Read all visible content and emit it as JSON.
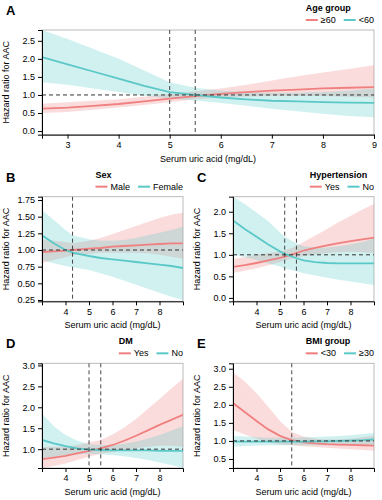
{
  "chart_data": [
    {
      "type": "line",
      "title": "A",
      "legend_title": "Age group",
      "legend": "upper right",
      "xlabel": "Serum uric acid (mg/dL)",
      "ylabel": "Hazard ratio for AAC",
      "xlim": [
        2.5,
        9.0
      ],
      "ylim": [
        -0.1,
        2.8
      ],
      "xticks": [
        3,
        4,
        5,
        6,
        7,
        8,
        9
      ],
      "yticks": [
        {
          "value": 0.0,
          "label": "0.0"
        },
        0.5,
        {
          "value": 1.0,
          "label": "1.0"
        },
        1.5,
        {
          "value": 2.0,
          "label": "2.0"
        },
        2.5
      ],
      "hline": 1.0,
      "vlines": [
        5.0,
        5.5
      ],
      "x": [
        2.5,
        3.0,
        3.5,
        4.0,
        4.5,
        5.0,
        5.5,
        6.0,
        6.5,
        7.0,
        7.5,
        8.0,
        8.5,
        9.0
      ],
      "series": [
        {
          "name": "≥60",
          "color": "#F08080",
          "values": [
            0.62,
            0.65,
            0.7,
            0.75,
            0.82,
            0.9,
            0.97,
            1.03,
            1.08,
            1.12,
            1.15,
            1.18,
            1.2,
            1.22
          ],
          "lower": [
            0.5,
            0.53,
            0.59,
            0.65,
            0.72,
            0.8,
            0.88,
            0.93,
            0.96,
            0.97,
            0.97,
            0.97,
            0.95,
            0.93
          ],
          "upper": [
            0.76,
            0.8,
            0.84,
            0.88,
            0.95,
            1.03,
            1.1,
            1.18,
            1.28,
            1.4,
            1.52,
            1.62,
            1.72,
            1.82
          ]
        },
        {
          "name": "<60",
          "color": "#5BC8C8",
          "values": [
            2.05,
            1.85,
            1.65,
            1.45,
            1.25,
            1.08,
            1.0,
            0.93,
            0.88,
            0.84,
            0.82,
            0.8,
            0.79,
            0.78
          ],
          "lower": [
            1.35,
            1.28,
            1.18,
            1.08,
            0.98,
            0.9,
            0.85,
            0.78,
            0.7,
            0.62,
            0.55,
            0.48,
            0.42,
            0.38
          ],
          "upper": [
            2.8,
            2.55,
            2.28,
            2.0,
            1.68,
            1.35,
            1.2,
            1.12,
            1.08,
            1.06,
            1.06,
            1.08,
            1.12,
            1.18
          ]
        }
      ]
    },
    {
      "type": "line",
      "title": "B",
      "legend_title": "Sex",
      "legend": "upper right",
      "xlabel": "Serum uric acid (mg/dL)",
      "ylabel": "Hazard ratio for AAC",
      "xlim": [
        3.0,
        9.0
      ],
      "ylim": [
        0.23,
        1.8
      ],
      "xticks": [
        4,
        5,
        6,
        7,
        8
      ],
      "yticks": [
        0.25,
        {
          "value": 0.5,
          "label": "0.50"
        },
        0.75,
        {
          "value": 1.0,
          "label": "1.00"
        },
        1.25,
        {
          "value": 1.5,
          "label": "1.50"
        },
        1.75
      ],
      "hline": 1.0,
      "vlines": [
        4.3
      ],
      "x": [
        3.0,
        3.5,
        4.0,
        4.3,
        5.0,
        5.5,
        6.0,
        6.5,
        7.0,
        7.5,
        8.0,
        8.5,
        9.0
      ],
      "series": [
        {
          "name": "Male",
          "color": "#F08080",
          "values": [
            0.97,
            0.98,
            0.99,
            1.0,
            1.02,
            1.03,
            1.05,
            1.06,
            1.07,
            1.08,
            1.09,
            1.1,
            1.1
          ],
          "lower": [
            0.8,
            0.85,
            0.89,
            0.92,
            0.94,
            0.96,
            0.96,
            0.96,
            0.96,
            0.95,
            0.93,
            0.9,
            0.87
          ],
          "upper": [
            1.16,
            1.14,
            1.12,
            1.1,
            1.14,
            1.18,
            1.24,
            1.3,
            1.36,
            1.42,
            1.48,
            1.53,
            1.56
          ]
        },
        {
          "name": "Female",
          "color": "#5BC8C8",
          "values": [
            1.22,
            1.1,
            1.0,
            0.96,
            0.91,
            0.88,
            0.86,
            0.84,
            0.82,
            0.8,
            0.78,
            0.76,
            0.73
          ],
          "lower": [
            0.85,
            0.8,
            0.76,
            0.74,
            0.7,
            0.65,
            0.6,
            0.54,
            0.48,
            0.42,
            0.36,
            0.3,
            0.25
          ],
          "upper": [
            1.6,
            1.45,
            1.3,
            1.22,
            1.16,
            1.14,
            1.14,
            1.15,
            1.18,
            1.22,
            1.26,
            1.3,
            1.35
          ]
        }
      ]
    },
    {
      "type": "line",
      "title": "C",
      "legend_title": "Hypertension",
      "legend": "upper right",
      "xlabel": "Serum uric acid (mg/dL)",
      "ylabel": "Hazard ratio for AAC",
      "xlim": [
        3.0,
        9.0
      ],
      "ylim": [
        -0.08,
        2.35
      ],
      "xticks": [
        4,
        5,
        6,
        7,
        8
      ],
      "yticks": [
        {
          "value": 0.0,
          "label": "0.0"
        },
        0.5,
        {
          "value": 1.0,
          "label": "1.0"
        },
        1.5,
        {
          "value": 2.0,
          "label": "2.0"
        }
      ],
      "hline": 1.0,
      "vlines": [
        5.2,
        5.7
      ],
      "x": [
        3.0,
        3.5,
        4.0,
        4.5,
        5.0,
        5.2,
        5.7,
        6.0,
        6.5,
        7.0,
        7.5,
        8.0,
        8.5,
        9.0
      ],
      "series": [
        {
          "name": "Yes",
          "color": "#F08080",
          "values": [
            0.72,
            0.76,
            0.81,
            0.87,
            0.93,
            0.96,
            1.04,
            1.1,
            1.16,
            1.22,
            1.27,
            1.32,
            1.36,
            1.4
          ],
          "lower": [
            0.58,
            0.63,
            0.69,
            0.76,
            0.83,
            0.87,
            0.93,
            0.97,
            1.01,
            1.04,
            1.06,
            1.07,
            1.06,
            1.04
          ],
          "upper": [
            0.9,
            0.95,
            1.0,
            1.04,
            1.08,
            1.1,
            1.2,
            1.3,
            1.45,
            1.6,
            1.76,
            1.9,
            2.05,
            2.18
          ]
        },
        {
          "name": "No",
          "color": "#5BC8C8",
          "values": [
            1.8,
            1.6,
            1.42,
            1.24,
            1.08,
            1.02,
            0.92,
            0.87,
            0.83,
            0.81,
            0.8,
            0.8,
            0.8,
            0.8
          ],
          "lower": [
            1.0,
            0.95,
            0.88,
            0.8,
            0.73,
            0.68,
            0.62,
            0.57,
            0.52,
            0.47,
            0.42,
            0.38,
            0.34,
            0.3
          ],
          "upper": [
            2.35,
            2.18,
            1.98,
            1.78,
            1.52,
            1.42,
            1.26,
            1.2,
            1.17,
            1.17,
            1.2,
            1.24,
            1.3,
            1.38
          ]
        }
      ]
    },
    {
      "type": "line",
      "title": "D",
      "legend_title": "DM",
      "legend": "upper right",
      "xlabel": "Serum uric acid (mg/dL)",
      "ylabel": "Hazard ratio for AAC",
      "xlim": [
        3.0,
        9.0
      ],
      "ylim": [
        0.55,
        3.05
      ],
      "xticks": [
        4,
        5,
        6,
        7,
        8
      ],
      "yticks": [
        {
          "value": 1.0,
          "label": "1.0"
        },
        1.5,
        {
          "value": 2.0,
          "label": "2.0"
        },
        2.5,
        {
          "value": 3.0,
          "label": "3.0"
        }
      ],
      "hline": 1.0,
      "vlines": [
        5.0,
        5.5
      ],
      "x": [
        3.0,
        3.5,
        4.0,
        4.5,
        5.0,
        5.5,
        6.0,
        6.5,
        7.0,
        7.5,
        8.0,
        8.5,
        9.0
      ],
      "series": [
        {
          "name": "Yes",
          "color": "#F08080",
          "values": [
            0.76,
            0.8,
            0.84,
            0.9,
            0.96,
            1.02,
            1.1,
            1.2,
            1.32,
            1.45,
            1.58,
            1.7,
            1.82
          ],
          "lower": [
            0.55,
            0.6,
            0.66,
            0.74,
            0.82,
            0.89,
            0.93,
            0.98,
            1.02,
            1.06,
            1.08,
            1.08,
            1.06
          ],
          "upper": [
            1.05,
            1.06,
            1.06,
            1.1,
            1.16,
            1.22,
            1.35,
            1.52,
            1.72,
            1.96,
            2.2,
            2.45,
            2.68
          ]
        },
        {
          "name": "No",
          "color": "#5BC8C8",
          "values": [
            1.22,
            1.14,
            1.07,
            1.02,
            0.99,
            0.98,
            0.97,
            0.97,
            0.97,
            0.97,
            0.96,
            0.96,
            0.96
          ],
          "lower": [
            0.78,
            0.82,
            0.86,
            0.88,
            0.89,
            0.88,
            0.86,
            0.83,
            0.79,
            0.74,
            0.68,
            0.62,
            0.55
          ],
          "upper": [
            1.85,
            1.55,
            1.34,
            1.2,
            1.12,
            1.1,
            1.1,
            1.13,
            1.18,
            1.25,
            1.34,
            1.44,
            1.55
          ]
        }
      ]
    },
    {
      "type": "line",
      "title": "E",
      "legend_title": "BMI group",
      "legend": "upper right",
      "xlabel": "Serum uric acid (mg/dL)",
      "ylabel": "Hazard ratio for AAC",
      "xlim": [
        3.0,
        9.0
      ],
      "ylim": [
        0.25,
        3.15
      ],
      "xticks": [
        4,
        5,
        6,
        7,
        8
      ],
      "yticks": [
        0.5,
        {
          "value": 1.0,
          "label": "1.0"
        },
        1.5,
        {
          "value": 2.0,
          "label": "2.0"
        },
        2.5,
        {
          "value": 3.0,
          "label": "3.0"
        }
      ],
      "hline": 1.0,
      "vlines": [
        5.5
      ],
      "x": [
        3.0,
        3.5,
        4.0,
        4.5,
        5.0,
        5.5,
        6.0,
        6.5,
        7.0,
        7.5,
        8.0,
        8.5,
        9.0
      ],
      "series": [
        {
          "name": "<30",
          "color": "#F08080",
          "values": [
            2.05,
            1.8,
            1.55,
            1.32,
            1.14,
            1.02,
            0.96,
            0.93,
            0.91,
            0.9,
            0.89,
            0.88,
            0.87
          ],
          "lower": [
            1.3,
            1.18,
            1.06,
            0.96,
            0.9,
            0.88,
            0.85,
            0.83,
            0.81,
            0.79,
            0.77,
            0.75,
            0.73
          ],
          "upper": [
            2.9,
            2.65,
            2.32,
            1.95,
            1.55,
            1.25,
            1.12,
            1.06,
            1.04,
            1.04,
            1.06,
            1.1,
            1.14
          ]
        },
        {
          "name": "≥30",
          "color": "#5BC8C8",
          "values": [
            0.98,
            0.98,
            0.98,
            0.98,
            0.98,
            0.98,
            0.98,
            0.99,
            0.99,
            1.0,
            1.01,
            1.02,
            1.04
          ],
          "lower": [
            0.84,
            0.86,
            0.87,
            0.88,
            0.88,
            0.88,
            0.88,
            0.88,
            0.88,
            0.88,
            0.88,
            0.88,
            0.87
          ],
          "upper": [
            1.14,
            1.12,
            1.1,
            1.09,
            1.09,
            1.09,
            1.1,
            1.11,
            1.12,
            1.14,
            1.16,
            1.19,
            1.22
          ]
        }
      ]
    }
  ]
}
